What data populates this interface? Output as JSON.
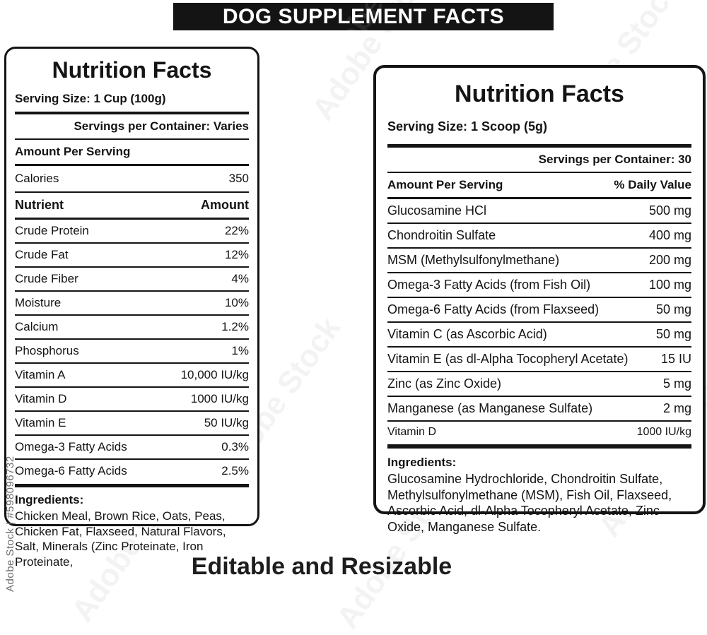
{
  "header": {
    "title": "DOG SUPPLEMENT FACTS"
  },
  "footer": {
    "caption": "Editable and Resizable"
  },
  "watermark": {
    "diagonal": "Adobe Stock",
    "stock_label": "Adobe Stock | #598096732"
  },
  "colors": {
    "ink": "#141414",
    "paper": "#ffffff",
    "header_bg": "#141414",
    "header_text": "#ffffff"
  },
  "left_panel": {
    "title": "Nutrition Facts",
    "serving_size": "Serving Size: 1 Cup (100g)",
    "servings_per_container": "Servings per Container: Varies",
    "amount_per_serving": "Amount Per Serving",
    "calories_label": "Calories",
    "calories_value": "350",
    "columns": {
      "nutrient": "Nutrient",
      "amount": "Amount"
    },
    "rows": [
      {
        "label": "Crude Protein",
        "value": "22%"
      },
      {
        "label": "Crude Fat",
        "value": "12%"
      },
      {
        "label": "Crude Fiber",
        "value": "4%"
      },
      {
        "label": "Moisture",
        "value": "10%"
      },
      {
        "label": "Calcium",
        "value": "1.2%"
      },
      {
        "label": "Phosphorus",
        "value": "1%"
      },
      {
        "label": "Vitamin A",
        "value": "10,000 IU/kg"
      },
      {
        "label": "Vitamin D",
        "value": "1000 IU/kg"
      },
      {
        "label": "Vitamin E",
        "value": "50 IU/kg"
      },
      {
        "label": "Omega-3 Fatty Acids",
        "value": "0.3%"
      },
      {
        "label": "Omega-6 Fatty Acids",
        "value": "2.5%"
      }
    ],
    "ingredients_title": "Ingredients:",
    "ingredients_text": "Chicken Meal, Brown Rice, Oats, Peas, Chicken Fat, Flaxseed, Natural Flavors, Salt, Minerals (Zinc Proteinate, Iron Proteinate,"
  },
  "right_panel": {
    "title": "Nutrition Facts",
    "serving_size": "Serving Size: 1 Scoop (5g)",
    "servings_per_container": "Servings per Container: 30",
    "columns": {
      "amount_per_serving": "Amount Per Serving",
      "daily_value": "% Daily Value"
    },
    "rows": [
      {
        "label": "Glucosamine HCl",
        "value": "500 mg"
      },
      {
        "label": "Chondroitin Sulfate",
        "value": "400 mg"
      },
      {
        "label": "MSM (Methylsulfonylmethane)",
        "value": "200 mg"
      },
      {
        "label": "Omega-3 Fatty Acids (from Fish Oil)",
        "value": "100 mg"
      },
      {
        "label": "Omega-6 Fatty Acids (from Flaxseed)",
        "value": "50 mg"
      },
      {
        "label": "Vitamin C (as Ascorbic Acid)",
        "value": "50 mg"
      },
      {
        "label": "Vitamin E (as dl-Alpha Tocopheryl Acetate)",
        "value": "15 IU"
      },
      {
        "label": "Zinc (as Zinc Oxide)",
        "value": "5 mg"
      },
      {
        "label": "Manganese (as Manganese Sulfate)",
        "value": "2 mg"
      },
      {
        "label": "Vitamin D",
        "value": "1000 IU/kg",
        "small": true
      }
    ],
    "ingredients_title": "Ingredients:",
    "ingredients_text": "Glucosamine Hydrochloride, Chondroitin Sulfate, Methylsulfonylmethane (MSM), Fish Oil, Flaxseed, Ascorbic Acid, dl-Alpha Tocopheryl Acetate, Zinc Oxide, Manganese Sulfate."
  }
}
